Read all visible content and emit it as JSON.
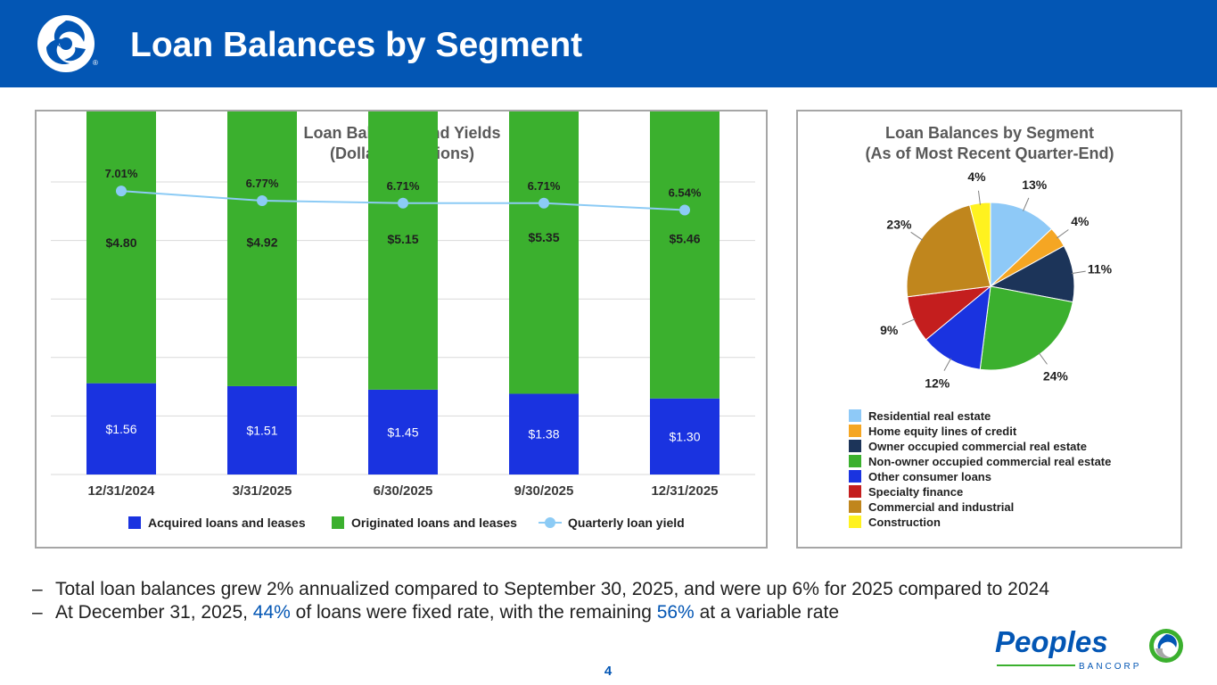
{
  "header": {
    "title": "Loan Balances by Segment"
  },
  "icons": {
    "brand_logo": "peoples-swirl-logo-icon",
    "registered_mark": "®"
  },
  "colors": {
    "header_bg": "#0356b4",
    "acquired": "#1a33e0",
    "originated": "#3bb02e",
    "yield_line": "#8ccbf5",
    "residential": "#8ec9f7",
    "heloc": "#f5a623",
    "owner_cre": "#1c3459",
    "non_owner_cre": "#3bb02e",
    "other_consumer": "#1a33e0",
    "specialty": "#c41e1e",
    "commercial_industrial": "#c0861d",
    "construction": "#fff21f"
  },
  "chart_data": [
    {
      "type": "bar",
      "stacked": true,
      "title": "Loan Balances and Yields\n(Dollars in billions)",
      "title_lines": [
        "Loan Balances and Yields",
        "(Dollars in billions)"
      ],
      "categories": [
        "12/31/2024",
        "3/31/2025",
        "6/30/2025",
        "9/30/2025",
        "12/31/2025"
      ],
      "series": [
        {
          "name": "Acquired loans and leases",
          "values": [
            1.56,
            1.51,
            1.45,
            1.38,
            1.3
          ],
          "labels": [
            "$1.56",
            "$1.51",
            "$1.45",
            "$1.38",
            "$1.30"
          ]
        },
        {
          "name": "Originated loans and leases",
          "values": [
            4.8,
            4.92,
            5.15,
            5.35,
            5.46
          ],
          "labels": [
            "$4.80",
            "$4.92",
            "$5.15",
            "$5.35",
            "$5.46"
          ]
        }
      ],
      "line_series": {
        "name": "Quarterly loan yield",
        "values": [
          7.01,
          6.77,
          6.71,
          6.71,
          6.54
        ],
        "labels": [
          "7.01%",
          "6.77%",
          "6.71%",
          "6.71%",
          "6.54%"
        ]
      },
      "ylim": [
        0,
        8
      ],
      "yield_axis": [
        0,
        7.3
      ],
      "grid": true,
      "legend": "bottom"
    },
    {
      "type": "pie",
      "title": "Loan Balances by Segment\n(As of Most Recent Quarter-End)",
      "title_lines": [
        "Loan Balances by Segment",
        "(As of Most Recent Quarter-End)"
      ],
      "labels": [
        "Residential real estate",
        "Home equity lines of credit",
        "Owner occupied commercial real estate",
        "Non-owner occupied commercial real estate",
        "Other consumer loans",
        "Specialty finance",
        "Commercial and industrial",
        "Construction"
      ],
      "values": [
        13,
        4,
        11,
        24,
        12,
        9,
        23,
        4
      ],
      "value_labels": [
        "13%",
        "4%",
        "11%",
        "24%",
        "12%",
        "9%",
        "23%",
        "4%"
      ],
      "legend": "bottom"
    }
  ],
  "bullets": [
    {
      "dash": "–",
      "text": "Total loan balances grew 2% annualized compared to September 30, 2025, and were up 6% for 2025 compared to 2024"
    },
    {
      "dash": "–",
      "pre": "At December 31, 2025, ",
      "hl1": "44%",
      "mid": " of loans were fixed rate, with the remaining ",
      "hl2": "56%",
      "post": " at a variable rate"
    }
  ],
  "footer": {
    "page_number": "4",
    "brand_name": "Peoples",
    "brand_sub": "BANCORP"
  }
}
